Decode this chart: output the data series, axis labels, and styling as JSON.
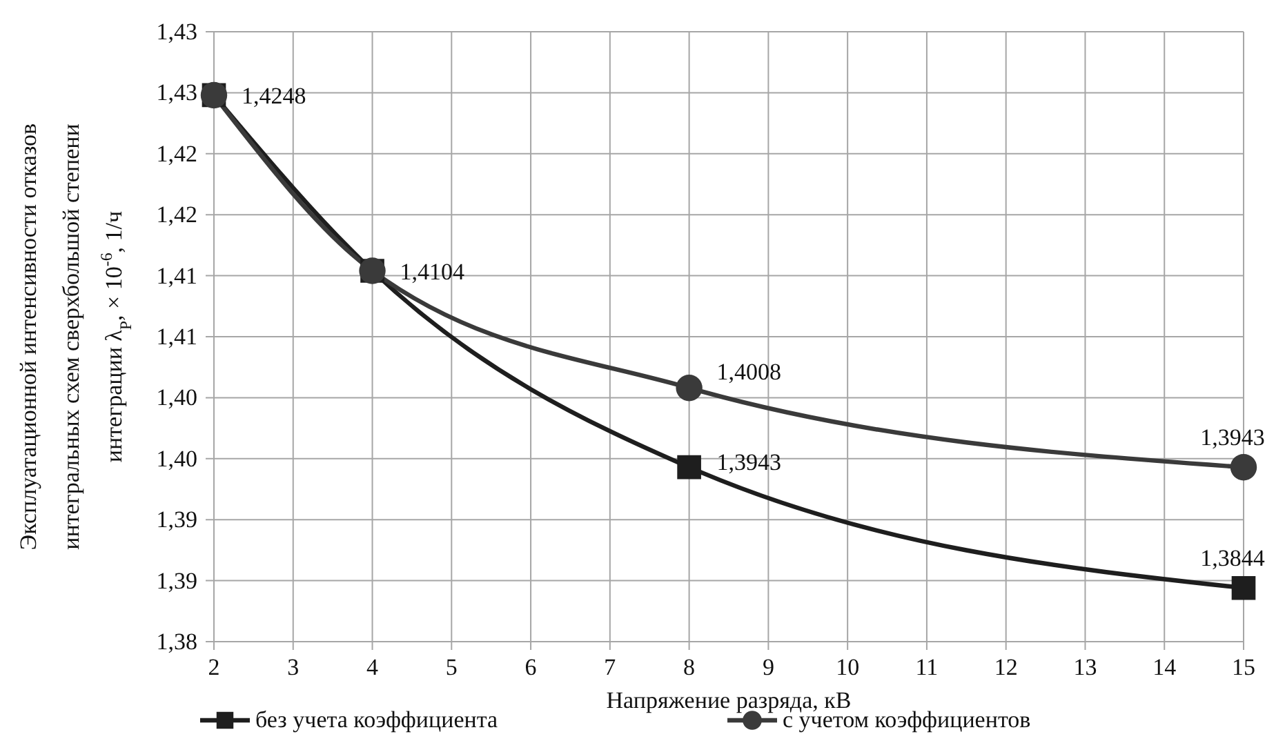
{
  "chart_data": {
    "type": "line",
    "xlabel": "Напряжение разряда, кВ",
    "ylabel": "Эксплуатационной интенсивности отказов интегральных схем сверхбольшой степени интеграции λ$_{Р}$, × 10$^{-6}$, 1/ч",
    "x": [
      2,
      4,
      8,
      15
    ],
    "series": [
      {
        "name": "без учета коэффициента",
        "color": "#1e1e1e",
        "marker": "square",
        "values": [
          1.4248,
          1.4104,
          1.3943,
          1.3844
        ],
        "value_labels": [
          "1,4248",
          "1,4104",
          "1,3943",
          "1,3844"
        ]
      },
      {
        "name": "с учетом коэффициентов",
        "color": "#3a3a3a",
        "marker": "circle",
        "values": [
          1.4248,
          1.4104,
          1.4008,
          1.3943
        ],
        "value_labels": [
          null,
          null,
          "1,4008",
          "1,3943"
        ]
      }
    ],
    "xlim": [
      2,
      15
    ],
    "xticks": [
      2,
      3,
      4,
      5,
      6,
      7,
      8,
      9,
      10,
      11,
      12,
      13,
      14,
      15
    ],
    "ylim": [
      1.38,
      1.43
    ],
    "yticks": [
      {
        "value": 1.38,
        "label": "1,38"
      },
      {
        "value": 1.385,
        "label": "1,39"
      },
      {
        "value": 1.39,
        "label": "1,39"
      },
      {
        "value": 1.395,
        "label": "1,40"
      },
      {
        "value": 1.4,
        "label": "1,40"
      },
      {
        "value": 1.405,
        "label": "1,41"
      },
      {
        "value": 1.41,
        "label": "1,41"
      },
      {
        "value": 1.415,
        "label": "1,42"
      },
      {
        "value": 1.42,
        "label": "1,42"
      },
      {
        "value": 1.425,
        "label": "1,43"
      },
      {
        "value": 1.43,
        "label": "1,43"
      }
    ],
    "grid": true,
    "legend": "bottom",
    "line_style": "solid"
  }
}
